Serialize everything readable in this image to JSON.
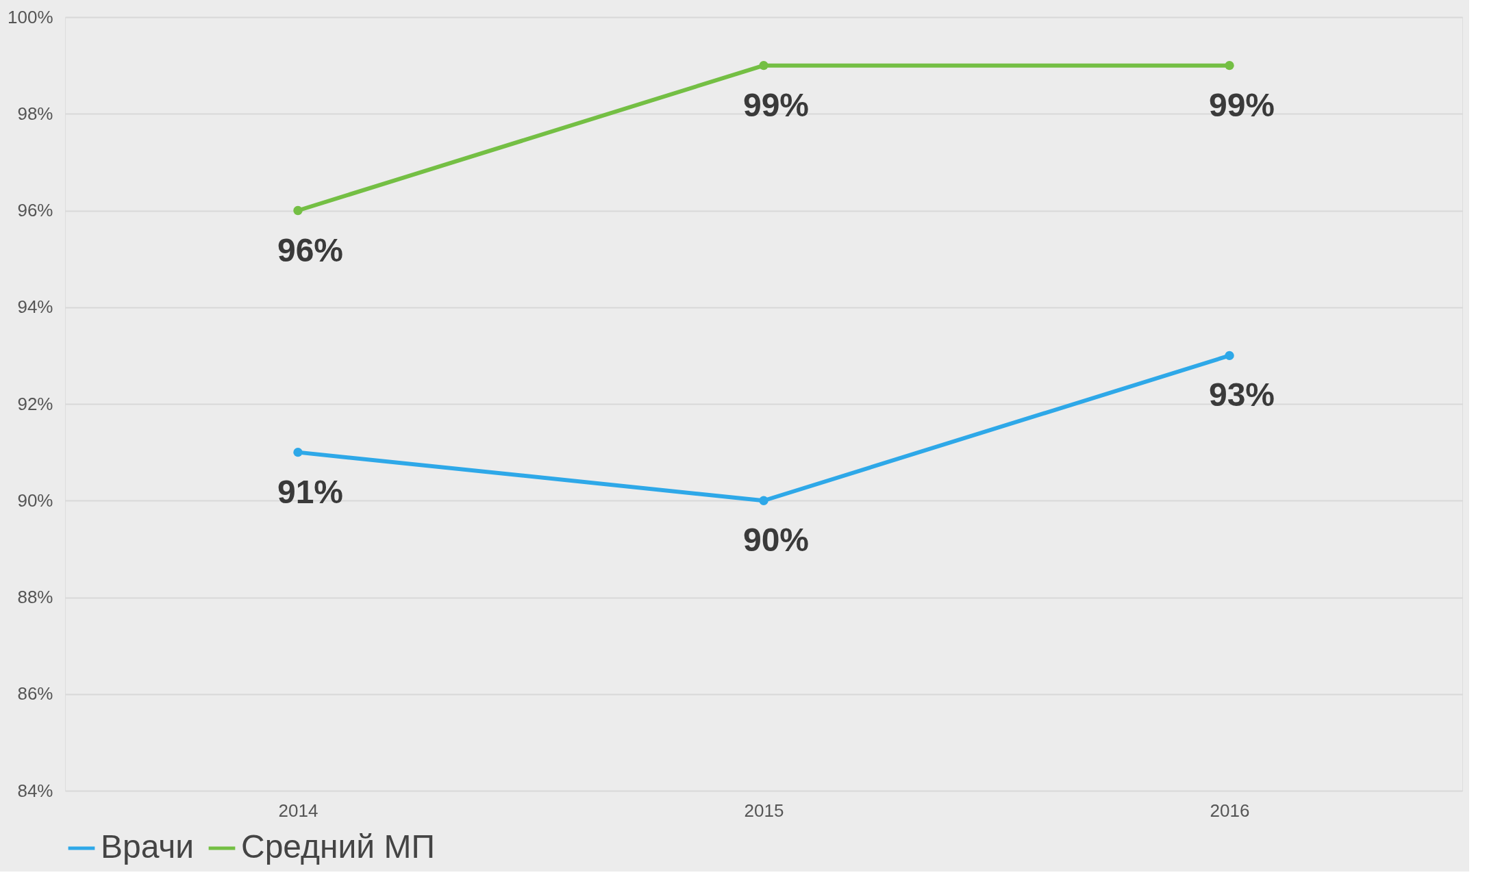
{
  "chart_data": {
    "type": "line",
    "categories": [
      "2014",
      "2015",
      "2016"
    ],
    "series": [
      {
        "name": "Врачи",
        "color": "#2ea8e8",
        "values": [
          91,
          90,
          93
        ],
        "value_labels": [
          "91%",
          "90%",
          "93%"
        ]
      },
      {
        "name": "Средний МП",
        "color": "#74bf44",
        "values": [
          96,
          99,
          99
        ],
        "value_labels": [
          "96%",
          "99%",
          "99%"
        ]
      }
    ],
    "ylim": [
      84,
      100
    ],
    "yticks": [
      {
        "value": 84,
        "label": "84%"
      },
      {
        "value": 86,
        "label": "86%"
      },
      {
        "value": 88,
        "label": "88%"
      },
      {
        "value": 90,
        "label": "90%"
      },
      {
        "value": 92,
        "label": "92%"
      },
      {
        "value": 94,
        "label": "94%"
      },
      {
        "value": 96,
        "label": "96%"
      },
      {
        "value": 98,
        "label": "98%"
      },
      {
        "value": 100,
        "label": "100%"
      }
    ],
    "grid": "y",
    "legend": "bottom",
    "marker": "circle",
    "line_style": "solid"
  }
}
